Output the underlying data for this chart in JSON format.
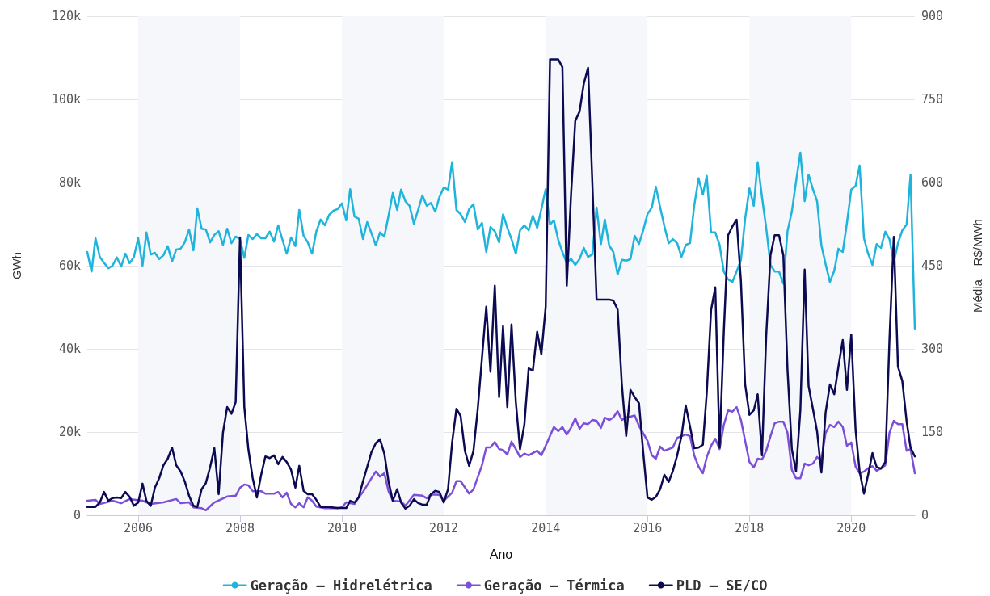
{
  "chart_data": {
    "type": "line",
    "xlabel": "Ano",
    "ylabel": "GWh",
    "y2label": "Média – R$/MWh",
    "x": [
      "2005-01",
      "2005-02",
      "2005-03",
      "2005-04",
      "2005-05",
      "2005-06",
      "2005-07",
      "2005-08",
      "2005-09",
      "2005-10",
      "2005-11",
      "2005-12",
      "2006-01",
      "2006-02",
      "2006-03",
      "2006-04",
      "2006-05",
      "2006-06",
      "2006-07",
      "2006-08",
      "2006-09",
      "2006-10",
      "2006-11",
      "2006-12",
      "2007-01",
      "2007-02",
      "2007-03",
      "2007-04",
      "2007-05",
      "2007-06",
      "2007-07",
      "2007-08",
      "2007-09",
      "2007-10",
      "2007-11",
      "2007-12",
      "2008-01",
      "2008-02",
      "2008-03",
      "2008-04",
      "2008-05",
      "2008-06",
      "2008-07",
      "2008-08",
      "2008-09",
      "2008-10",
      "2008-11",
      "2008-12",
      "2009-01",
      "2009-02",
      "2009-03",
      "2009-04",
      "2009-05",
      "2009-06",
      "2009-07",
      "2009-08",
      "2009-09",
      "2009-10",
      "2009-11",
      "2009-12",
      "2010-01",
      "2010-02",
      "2010-03",
      "2010-04",
      "2010-05",
      "2010-06",
      "2010-07",
      "2010-08",
      "2010-09",
      "2010-10",
      "2010-11",
      "2010-12",
      "2011-01",
      "2011-02",
      "2011-03",
      "2011-04",
      "2011-05",
      "2011-06",
      "2011-07",
      "2011-08",
      "2011-09",
      "2011-10",
      "2011-11",
      "2011-12",
      "2012-01",
      "2012-02",
      "2012-03",
      "2012-04",
      "2012-05",
      "2012-06",
      "2012-07",
      "2012-08",
      "2012-09",
      "2012-10",
      "2012-11",
      "2012-12",
      "2013-01",
      "2013-02",
      "2013-03",
      "2013-04",
      "2013-05",
      "2013-06",
      "2013-07",
      "2013-08",
      "2013-09",
      "2013-10",
      "2013-11",
      "2013-12",
      "2014-01",
      "2014-02",
      "2014-03",
      "2014-04",
      "2014-05",
      "2014-06",
      "2014-07",
      "2014-08",
      "2014-09",
      "2014-10",
      "2014-11",
      "2014-12",
      "2015-01",
      "2015-02",
      "2015-03",
      "2015-04",
      "2015-05",
      "2015-06",
      "2015-07",
      "2015-08",
      "2015-09",
      "2015-10",
      "2015-11",
      "2015-12",
      "2016-01",
      "2016-02",
      "2016-03",
      "2016-04",
      "2016-05",
      "2016-06",
      "2016-07",
      "2016-08",
      "2016-09",
      "2016-10",
      "2016-11",
      "2016-12",
      "2017-01",
      "2017-02",
      "2017-03",
      "2017-04",
      "2017-05",
      "2017-06",
      "2017-07",
      "2017-08",
      "2017-09",
      "2017-10",
      "2017-11",
      "2017-12",
      "2018-01",
      "2018-02",
      "2018-03",
      "2018-04",
      "2018-05",
      "2018-06",
      "2018-07",
      "2018-08",
      "2018-09",
      "2018-10",
      "2018-11",
      "2018-12",
      "2019-01",
      "2019-02",
      "2019-03",
      "2019-04",
      "2019-05",
      "2019-06",
      "2019-07",
      "2019-08",
      "2019-09",
      "2019-10",
      "2019-11",
      "2019-12",
      "2020-01",
      "2020-02",
      "2020-03",
      "2020-04",
      "2020-05",
      "2020-06",
      "2020-07",
      "2020-08",
      "2020-09",
      "2020-10",
      "2020-11",
      "2020-12",
      "2021-01",
      "2021-02",
      "2021-03",
      "2021-04"
    ],
    "series": [
      {
        "name": "Geração – Hidrelétrica",
        "color": "#1fb4dc",
        "values": [
          63300,
          58600,
          66600,
          62100,
          60700,
          59400,
          60000,
          62000,
          59800,
          62900,
          60600,
          62100,
          66600,
          60000,
          68000,
          62700,
          63100,
          61600,
          62500,
          64700,
          61000,
          63900,
          64100,
          65600,
          68700,
          63700,
          73800,
          68900,
          68700,
          65600,
          67400,
          68300,
          65000,
          68900,
          65400,
          67000,
          66400,
          61900,
          67400,
          66400,
          67600,
          66600,
          66600,
          68200,
          65800,
          69700,
          66200,
          62900,
          66800,
          64700,
          73400,
          67200,
          65600,
          62900,
          68200,
          71100,
          69700,
          72200,
          73200,
          73600,
          75000,
          70900,
          78400,
          71800,
          71300,
          66400,
          70500,
          67800,
          64900,
          68000,
          67000,
          72000,
          77500,
          73400,
          78300,
          75500,
          74400,
          70100,
          73400,
          76900,
          74400,
          75100,
          73000,
          76500,
          78800,
          78300,
          84900,
          73400,
          72400,
          70500,
          73600,
          74800,
          68700,
          70300,
          63300,
          69300,
          68300,
          65600,
          72400,
          69100,
          66400,
          62900,
          68500,
          69700,
          68500,
          72000,
          69100,
          73600,
          78400,
          69900,
          70900,
          66200,
          63300,
          60600,
          61700,
          60200,
          61600,
          64300,
          62100,
          62700,
          74000,
          65200,
          71100,
          64900,
          63300,
          57900,
          61400,
          61200,
          61600,
          67200,
          65200,
          68500,
          72400,
          74000,
          79000,
          74000,
          69500,
          65400,
          66400,
          65400,
          62100,
          65000,
          65400,
          74400,
          81000,
          77100,
          81600,
          68000,
          68000,
          65000,
          58600,
          56700,
          56100,
          58600,
          61400,
          71300,
          78600,
          74400,
          84900,
          76500,
          69100,
          60200,
          58600,
          58600,
          55700,
          68300,
          73000,
          80200,
          87200,
          75500,
          81900,
          78400,
          75500,
          64900,
          60400,
          56100,
          58800,
          64100,
          63300,
          70300,
          78300,
          79200,
          84100,
          66600,
          62900,
          60200,
          65200,
          64300,
          68200,
          66400,
          60800,
          65400,
          68500,
          69900,
          81900,
          44700
        ]
      },
      {
        "name": "Geração – Térmica",
        "color": "#7b4fd8",
        "x": [
          "2005-01",
          "2005-03",
          "2005-04",
          "2005-07",
          "2005-09",
          "2005-11",
          "2006-02",
          "2006-04",
          "2006-07",
          "2006-10",
          "2006-11",
          "2007-01",
          "2007-02",
          "2007-04",
          "2007-05",
          "2007-07",
          "2007-10",
          "2007-12",
          "2008-01",
          "2008-02",
          "2008-03",
          "2008-04",
          "2008-06",
          "2008-07",
          "2008-09",
          "2008-10",
          "2008-11",
          "2008-12",
          "2009-01",
          "2009-02",
          "2009-03",
          "2009-04",
          "2009-05",
          "2009-06",
          "2009-07",
          "2009-09",
          "2009-12",
          "2010-01",
          "2010-02",
          "2010-04",
          "2010-05",
          "2010-06",
          "2010-08",
          "2010-09",
          "2010-10",
          "2010-11",
          "2010-12",
          "2011-01",
          "2011-03",
          "2011-04",
          "2011-06",
          "2011-08",
          "2011-09",
          "2011-10",
          "2011-12",
          "2012-01",
          "2012-03",
          "2012-04",
          "2012-05",
          "2012-07",
          "2012-08",
          "2012-10",
          "2012-11",
          "2012-12",
          "2013-01",
          "2013-02",
          "2013-03",
          "2013-04",
          "2013-05",
          "2013-06",
          "2013-07",
          "2013-08",
          "2013-09",
          "2013-11",
          "2013-12",
          "2014-01",
          "2014-03",
          "2014-04",
          "2014-05",
          "2014-06",
          "2014-07",
          "2014-08",
          "2014-09",
          "2014-10",
          "2014-11",
          "2014-12",
          "2015-01",
          "2015-02",
          "2015-03",
          "2015-04",
          "2015-05",
          "2015-06",
          "2015-07",
          "2015-08",
          "2015-09",
          "2015-10",
          "2015-11",
          "2016-01",
          "2016-02",
          "2016-03",
          "2016-04",
          "2016-05",
          "2016-07",
          "2016-08",
          "2016-10",
          "2016-11",
          "2016-12",
          "2017-01",
          "2017-02",
          "2017-03",
          "2017-04",
          "2017-05",
          "2017-06",
          "2017-07",
          "2017-08",
          "2017-09",
          "2017-10",
          "2017-11",
          "2017-12",
          "2018-01",
          "2018-02",
          "2018-03",
          "2018-04",
          "2018-05",
          "2018-06",
          "2018-07",
          "2018-08",
          "2018-09",
          "2018-10",
          "2018-11",
          "2018-12",
          "2019-01",
          "2019-02",
          "2019-03",
          "2019-04",
          "2019-05",
          "2019-06",
          "2019-07",
          "2019-08",
          "2019-09",
          "2019-10",
          "2019-11",
          "2019-12",
          "2020-01",
          "2020-02",
          "2020-03",
          "2020-04",
          "2020-05",
          "2020-06",
          "2020-07",
          "2020-08",
          "2020-09",
          "2020-10",
          "2020-11",
          "2020-12",
          "2021-01",
          "2021-02",
          "2021-03",
          "2021-04"
        ],
        "values": [
          3500,
          3700,
          2700,
          3500,
          2900,
          3900,
          3500,
          2700,
          3100,
          3900,
          2900,
          3100,
          1900,
          1700,
          1200,
          3100,
          4500,
          4700,
          6600,
          7400,
          7200,
          5800,
          5800,
          5200,
          5200,
          5600,
          4300,
          5400,
          2700,
          1900,
          2900,
          1900,
          4300,
          3500,
          2100,
          1700,
          1700,
          1900,
          3100,
          2700,
          4300,
          5600,
          8900,
          10500,
          9300,
          10100,
          5800,
          3500,
          3300,
          2300,
          4900,
          4700,
          4100,
          5000,
          4900,
          3500,
          5400,
          8200,
          8200,
          5200,
          6200,
          12000,
          16300,
          16300,
          17600,
          15900,
          15700,
          14600,
          17700,
          15900,
          14000,
          14800,
          14400,
          15500,
          14400,
          16700,
          21200,
          20200,
          21200,
          19400,
          21000,
          23300,
          20800,
          22100,
          21900,
          22900,
          22700,
          21000,
          23500,
          22900,
          23500,
          25000,
          22900,
          23500,
          23700,
          24000,
          21500,
          17900,
          14400,
          13600,
          16500,
          15500,
          16300,
          18600,
          19400,
          19000,
          14400,
          11700,
          10100,
          14000,
          16700,
          18400,
          15900,
          21700,
          25200,
          24900,
          26000,
          22900,
          17900,
          12800,
          11500,
          13600,
          13400,
          15500,
          19000,
          22100,
          22500,
          22500,
          19800,
          10900,
          8900,
          8900,
          12400,
          12000,
          12400,
          14000,
          13200,
          19800,
          21700,
          21200,
          22500,
          21200,
          16700,
          17500,
          11700,
          10100,
          10500,
          11300,
          11800,
          10700,
          11300,
          12000,
          19800,
          22700,
          21900,
          21900,
          15500,
          15900,
          10100
        ]
      },
      {
        "name": "PLD – SE/CO",
        "color": "#0c0b52",
        "axis": "y2",
        "values": [
          15,
          15,
          15,
          23,
          42,
          26,
          31,
          32,
          31,
          42,
          33,
          17,
          23,
          57,
          26,
          17,
          50,
          67,
          90,
          102,
          122,
          90,
          79,
          61,
          35,
          17,
          15,
          47,
          58,
          87,
          121,
          38,
          149,
          195,
          183,
          204,
          501,
          195,
          119,
          67,
          32,
          73,
          106,
          103,
          108,
          92,
          105,
          96,
          82,
          50,
          89,
          44,
          38,
          38,
          28,
          15,
          15,
          15,
          14,
          13,
          13,
          13,
          26,
          23,
          32,
          61,
          87,
          114,
          130,
          137,
          111,
          61,
          26,
          47,
          23,
          12,
          17,
          29,
          22,
          19,
          19,
          38,
          44,
          42,
          23,
          47,
          131,
          192,
          179,
          116,
          89,
          116,
          192,
          283,
          376,
          259,
          414,
          213,
          341,
          195,
          344,
          204,
          119,
          163,
          265,
          261,
          331,
          290,
          376,
          822,
          822,
          822,
          808,
          414,
          574,
          711,
          728,
          778,
          807,
          603,
          389,
          389,
          389,
          389,
          387,
          371,
          236,
          143,
          226,
          213,
          202,
          114,
          32,
          28,
          33,
          47,
          73,
          60,
          80,
          108,
          143,
          198,
          160,
          121,
          122,
          127,
          221,
          370,
          411,
          122,
          329,
          505,
          521,
          533,
          422,
          236,
          181,
          189,
          218,
          108,
          323,
          469,
          505,
          505,
          469,
          262,
          119,
          79,
          189,
          443,
          233,
          192,
          151,
          77,
          185,
          236,
          218,
          268,
          316,
          226,
          326,
          154,
          79,
          39,
          73,
          112,
          87,
          84,
          96,
          317,
          502,
          268,
          242,
          169,
          122,
          106
        ]
      }
    ],
    "xlim": [
      "2005-01",
      "2021-04"
    ],
    "xticks": [
      "2006",
      "2008",
      "2010",
      "2012",
      "2014",
      "2016",
      "2018",
      "2020"
    ],
    "ylim": [
      0,
      120000
    ],
    "yticks": [
      0,
      {
        "value": 20000,
        "label": "20k"
      },
      {
        "value": 40000,
        "label": "40k"
      },
      {
        "value": 60000,
        "label": "60k"
      },
      {
        "value": 80000,
        "label": "80k"
      },
      {
        "value": 100000,
        "label": "100k"
      },
      {
        "value": 120000,
        "label": "120k"
      }
    ],
    "y2lim": [
      0,
      900
    ],
    "y2ticks": [
      0,
      150,
      300,
      450,
      600,
      750,
      900
    ],
    "bands": [
      {
        "axis": "x",
        "from": "2006",
        "to": "2008",
        "color": "#f5f7fa"
      },
      {
        "axis": "x",
        "from": "2010",
        "to": "2012",
        "color": "#f5f7fa"
      },
      {
        "axis": "x",
        "from": "2014",
        "to": "2016",
        "color": "#f5f7fa"
      },
      {
        "axis": "x",
        "from": "2018",
        "to": "2020",
        "color": "#f5f7fa"
      }
    ],
    "grid": "y",
    "legend": "bottom",
    "marker": "none",
    "line_style": "solid"
  }
}
